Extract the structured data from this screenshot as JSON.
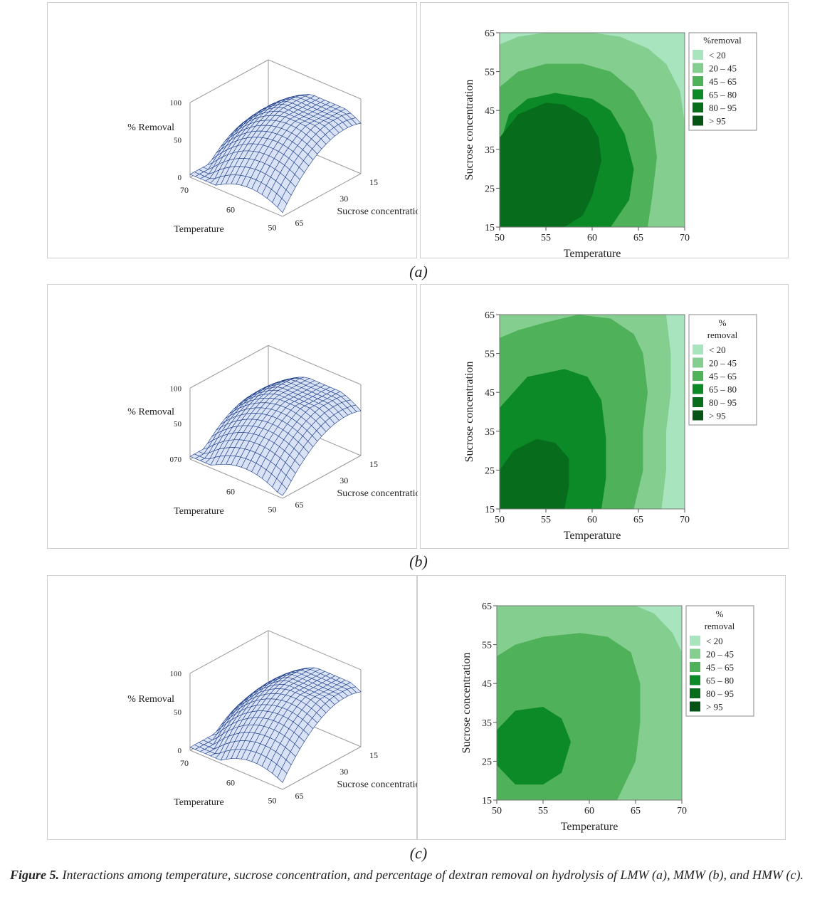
{
  "colors": {
    "zone_lt20": "#a8e4bd",
    "zone_20_45": "#84cf8f",
    "zone_45_65": "#4fb159",
    "zone_65_80": "#0c8a27",
    "zone_80_95": "#076c1c",
    "zone_gt95": "#055416",
    "mesh": "#1d3d8a",
    "mesh_fill": "#d9e3f5"
  },
  "figure": {
    "caption_label": "Figure 5.",
    "caption_text": " Interactions among temperature, sucrose concentration, and percentage of dextran removal on hydrolysis of LMW (a), MMW (b), and HMW (c)."
  },
  "chart_data": [
    {
      "panel": "(a)",
      "surface": {
        "type": "surface",
        "zlabel": "% Removal",
        "xlabel": "Temperature",
        "ylabel": "Sucrose concentration",
        "z_ticks": [
          "100",
          "50",
          "0"
        ],
        "x_ticks": [
          "70",
          "60",
          "50"
        ],
        "y_ticks": [
          "15",
          "30",
          "65"
        ]
      },
      "contour": {
        "type": "contour",
        "xlabel": "Temperature",
        "ylabel": "Sucrose concentration",
        "x_ticks": [
          "50",
          "55",
          "60",
          "65",
          "70"
        ],
        "y_ticks": [
          "15",
          "25",
          "35",
          "45",
          "55",
          "65"
        ],
        "xlim": [
          50,
          70
        ],
        "ylim": [
          15,
          65
        ],
        "legend_title": "%removal",
        "legend": [
          "< 20",
          "20 – 45",
          "45 – 65",
          "65 – 80",
          "80 – 95",
          "> 95"
        ],
        "zones": [
          {
            "level": "20 – 45",
            "boundary": [
              [
                50,
                62
              ],
              [
                52,
                64
              ],
              [
                55,
                65
              ],
              [
                60,
                65
              ],
              [
                63,
                64
              ],
              [
                66,
                61
              ],
              [
                68,
                57
              ],
              [
                69.5,
                50
              ],
              [
                70,
                42
              ],
              [
                70,
                15
              ]
            ]
          },
          {
            "level": "45 – 65",
            "boundary": [
              [
                50,
                51
              ],
              [
                52,
                55
              ],
              [
                55,
                57
              ],
              [
                59,
                57
              ],
              [
                62,
                55
              ],
              [
                64.5,
                50
              ],
              [
                66.5,
                42
              ],
              [
                67,
                33
              ],
              [
                66.5,
                23
              ],
              [
                66,
                15
              ]
            ]
          },
          {
            "level": "65 – 80",
            "boundary": [
              [
                50,
                36
              ],
              [
                51,
                44
              ],
              [
                53,
                48
              ],
              [
                56,
                49.5
              ],
              [
                60,
                48
              ],
              [
                62,
                45
              ],
              [
                63.5,
                39
              ],
              [
                64.5,
                30
              ],
              [
                64,
                22
              ],
              [
                62,
                15
              ]
            ]
          },
          {
            "level": "80 – 95",
            "boundary": [
              [
                50,
                15
              ],
              [
                50,
                38
              ],
              [
                52,
                44
              ],
              [
                55,
                47
              ],
              [
                57,
                46.5
              ],
              [
                59.5,
                43
              ],
              [
                60.7,
                38
              ],
              [
                61,
                32
              ],
              [
                60,
                23
              ],
              [
                59,
                18
              ],
              [
                57,
                15
              ]
            ]
          }
        ]
      }
    },
    {
      "panel": "(b)",
      "surface": {
        "type": "surface",
        "zlabel": "% Removal",
        "xlabel": "Temperature",
        "ylabel": "Sucrose concentration",
        "z_ticks": [
          "100",
          "50",
          "070"
        ],
        "x_ticks": [
          "60",
          "50"
        ],
        "y_ticks": [
          "15",
          "30",
          "65"
        ]
      },
      "contour": {
        "type": "contour",
        "xlabel": "Temperature",
        "ylabel": "Sucrose concentration",
        "x_ticks": [
          "50",
          "55",
          "60",
          "65",
          "70"
        ],
        "y_ticks": [
          "15",
          "25",
          "35",
          "45",
          "55",
          "65"
        ],
        "xlim": [
          50,
          70
        ],
        "ylim": [
          15,
          65
        ],
        "legend_title": "% removal",
        "legend": [
          "< 20",
          "20 – 45",
          "45 – 65",
          "65 – 80",
          "80 – 95",
          "> 95"
        ],
        "zones": [
          {
            "level": "20 – 45",
            "boundary": [
              [
                50,
                65
              ],
              [
                68,
                65
              ],
              [
                68.5,
                55
              ],
              [
                68.5,
                45
              ],
              [
                68,
                35
              ],
              [
                68,
                25
              ],
              [
                67.5,
                15
              ]
            ]
          },
          {
            "level": "45 – 65",
            "boundary": [
              [
                50,
                59
              ],
              [
                52,
                61
              ],
              [
                55,
                63
              ],
              [
                58.5,
                65
              ],
              [
                62,
                64
              ],
              [
                64.5,
                60
              ],
              [
                65.5,
                55
              ],
              [
                66,
                45
              ],
              [
                65.5,
                35
              ],
              [
                65.5,
                25
              ],
              [
                64.5,
                15
              ]
            ]
          },
          {
            "level": "65 – 80",
            "boundary": [
              [
                50,
                41
              ],
              [
                53,
                49
              ],
              [
                57,
                51
              ],
              [
                59.5,
                49
              ],
              [
                61,
                43
              ],
              [
                61.5,
                33
              ],
              [
                61.5,
                23
              ],
              [
                61,
                15
              ]
            ]
          },
          {
            "level": "80 – 95",
            "boundary": [
              [
                50,
                25
              ],
              [
                51.5,
                30
              ],
              [
                54,
                33
              ],
              [
                56,
                32
              ],
              [
                57.5,
                28
              ],
              [
                57.5,
                21
              ],
              [
                57,
                15
              ]
            ]
          }
        ]
      }
    },
    {
      "panel": "(c)",
      "surface": {
        "type": "surface",
        "zlabel": "% Removal",
        "xlabel": "Temperature",
        "ylabel": "Sucrose concentration",
        "z_ticks": [
          "100",
          "50",
          "0"
        ],
        "x_ticks": [
          "70",
          "60",
          "50"
        ],
        "y_ticks": [
          "15",
          "30",
          "65"
        ]
      },
      "contour": {
        "type": "contour",
        "xlabel": "Temperature",
        "ylabel": "Sucrose concentration",
        "x_ticks": [
          "50",
          "55",
          "60",
          "65",
          "70"
        ],
        "y_ticks": [
          "15",
          "25",
          "35",
          "45",
          "55",
          "65"
        ],
        "xlim": [
          50,
          70
        ],
        "ylim": [
          15,
          65
        ],
        "legend_title": "% removal",
        "legend": [
          "< 20",
          "20 – 45",
          "45 – 65",
          "65 – 80",
          "80 – 95",
          "> 95"
        ],
        "zones": [
          {
            "level": "20 – 45",
            "boundary": [
              [
                50,
                65
              ],
              [
                65,
                65
              ],
              [
                67,
                63
              ],
              [
                69,
                58
              ],
              [
                70,
                53
              ],
              [
                70,
                15
              ]
            ]
          },
          {
            "level": "45 – 65",
            "boundary": [
              [
                50,
                52
              ],
              [
                52,
                55
              ],
              [
                55,
                57
              ],
              [
                59,
                58
              ],
              [
                62,
                57
              ],
              [
                64.5,
                53
              ],
              [
                65.5,
                45
              ],
              [
                65.5,
                35
              ],
              [
                65,
                25
              ],
              [
                63,
                15
              ]
            ]
          },
          {
            "level": "65 – 80",
            "boundary": [
              [
                52,
                38
              ],
              [
                55,
                39
              ],
              [
                57,
                36
              ],
              [
                58,
                30
              ],
              [
                57,
                22
              ],
              [
                55,
                19
              ],
              [
                52,
                19
              ],
              [
                50,
                24
              ],
              [
                50,
                33
              ]
            ]
          }
        ]
      }
    }
  ]
}
